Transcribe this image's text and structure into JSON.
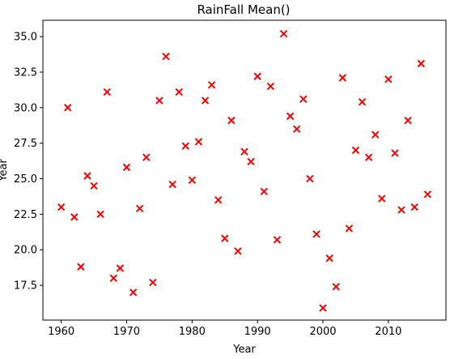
{
  "chart_data": {
    "type": "scatter",
    "title": "RainFall Mean()",
    "xlabel": "Year",
    "ylabel": "Year",
    "xlim": [
      1957.2,
      2018.8
    ],
    "ylim": [
      15.05,
      36.15
    ],
    "xticks": [
      1960,
      1970,
      1980,
      1990,
      2000,
      2010
    ],
    "yticks": [
      17.5,
      20.0,
      22.5,
      25.0,
      27.5,
      30.0,
      32.5,
      35.0
    ],
    "grid": false,
    "marker": "x",
    "color": "#ff0000",
    "series": [
      {
        "points": [
          [
            1960,
            23.0
          ],
          [
            1961,
            30.0
          ],
          [
            1962,
            22.3
          ],
          [
            1963,
            18.8
          ],
          [
            1964,
            25.2
          ],
          [
            1965,
            24.5
          ],
          [
            1966,
            22.5
          ],
          [
            1967,
            31.1
          ],
          [
            1968,
            18.0
          ],
          [
            1969,
            18.7
          ],
          [
            1970,
            25.8
          ],
          [
            1971,
            17.0
          ],
          [
            1972,
            22.9
          ],
          [
            1973,
            26.5
          ],
          [
            1974,
            17.7
          ],
          [
            1975,
            30.5
          ],
          [
            1976,
            33.6
          ],
          [
            1977,
            24.6
          ],
          [
            1978,
            31.1
          ],
          [
            1979,
            27.3
          ],
          [
            1980,
            24.9
          ],
          [
            1981,
            27.6
          ],
          [
            1982,
            30.5
          ],
          [
            1983,
            31.6
          ],
          [
            1984,
            23.5
          ],
          [
            1985,
            20.8
          ],
          [
            1986,
            29.1
          ],
          [
            1987,
            19.9
          ],
          [
            1988,
            26.9
          ],
          [
            1989,
            26.2
          ],
          [
            1990,
            32.2
          ],
          [
            1991,
            24.1
          ],
          [
            1992,
            31.5
          ],
          [
            1993,
            20.7
          ],
          [
            1994,
            35.2
          ],
          [
            1995,
            29.4
          ],
          [
            1996,
            28.5
          ],
          [
            1997,
            30.6
          ],
          [
            1998,
            25.0
          ],
          [
            1999,
            21.1
          ],
          [
            2000,
            15.9
          ],
          [
            2001,
            19.4
          ],
          [
            2002,
            17.4
          ],
          [
            2003,
            32.1
          ],
          [
            2004,
            21.5
          ],
          [
            2005,
            27.0
          ],
          [
            2006,
            30.4
          ],
          [
            2007,
            26.5
          ],
          [
            2008,
            28.1
          ],
          [
            2009,
            23.6
          ],
          [
            2010,
            32.0
          ],
          [
            2011,
            26.8
          ],
          [
            2012,
            22.8
          ],
          [
            2013,
            29.1
          ],
          [
            2014,
            23.0
          ],
          [
            2015,
            33.1
          ],
          [
            2016,
            23.9
          ]
        ]
      }
    ]
  }
}
